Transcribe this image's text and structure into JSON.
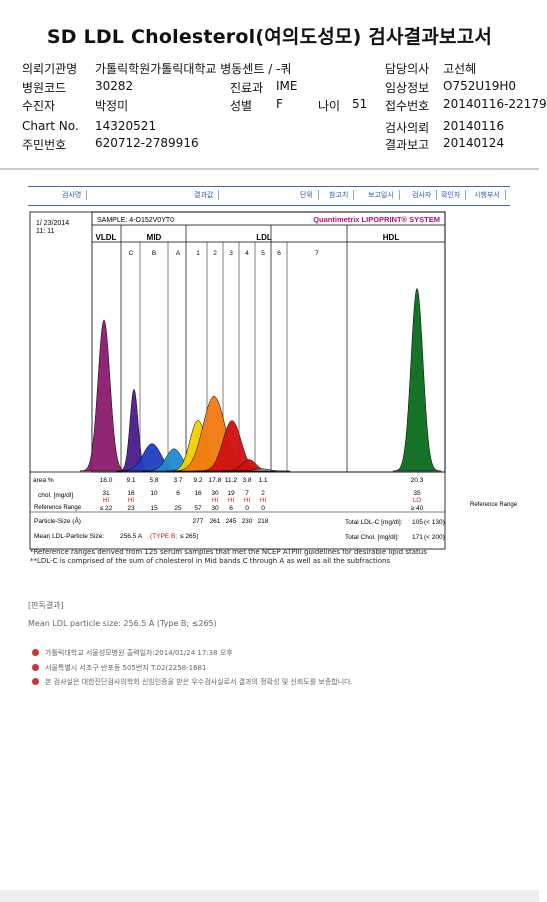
{
  "report": {
    "title": "SD LDL Cholesterol(여의도성모) 검사결과보고서"
  },
  "header": {
    "institution_label": "의뢰기관명",
    "institution": "가톨릭학원가톨릭대학교 병동센트 / -쿼",
    "code_label": "병원코드",
    "code": "30282",
    "dept_label": "진료과",
    "dept": "IME",
    "recipient_label": "수진자",
    "recipient": "박정미",
    "sex_label": "성별",
    "sex": "F",
    "age_label": "나이",
    "age": "51",
    "chart_label": "Chart No.",
    "chart": "14320521",
    "resident_label": "주민번호",
    "resident": "620712-2789916",
    "doctor_label": "담당의사",
    "doctor": "고선혜",
    "clinical_label": "임상정보",
    "clinical": "O752U19H0",
    "reception_label": "접수번호",
    "reception": "20140116-22179",
    "request_label": "검사의뢰",
    "request": "20140116",
    "report_label": "결과보고",
    "report_date": "20140124"
  },
  "tabs": [
    "검사명",
    "결과값",
    "단위",
    "참고치",
    "보고일시",
    "검사자",
    "확인자",
    "시행부서"
  ],
  "chart_data": {
    "type": "area",
    "date": "1/ 23/2014",
    "time": "11: 11",
    "sample": "SAMPLE:  4-O152V0YT0",
    "brand": "Quantimetrix LIPOPRINT® SYSTEM",
    "groups": [
      "VLDL",
      "MID",
      "LDL",
      "HDL"
    ],
    "bands": [
      "C",
      "B",
      "A",
      "1",
      "2",
      "3",
      "4",
      "5",
      "6",
      "7"
    ],
    "area_label": "area %",
    "area": [
      "18.0",
      "9.1",
      "5.8",
      "3.7",
      "9.2",
      "17.8",
      "11.2",
      "3.8",
      "1.1",
      "20.3"
    ],
    "chol_label": "chol. [mg/dl]",
    "chol": [
      "31",
      "16",
      "10",
      "6",
      "16",
      "30",
      "19",
      "7",
      "2",
      "35"
    ],
    "flags": [
      "HI",
      "HI",
      "HI",
      "HI",
      "HI",
      "HI",
      "LO"
    ],
    "ref_label": "Reference Range",
    "ref": [
      "≤ 22",
      "23",
      "15",
      "25",
      "57",
      "30",
      "6",
      "0",
      "0",
      "≥ 40"
    ],
    "particle_label": "Particle-Size (Å)",
    "particle": [
      "277",
      "261",
      "245",
      "230",
      "218"
    ],
    "mean_label": "Mean LDL-Particle Size:",
    "mean_value": "256.5 A",
    "mean_type": "(TYPE B;",
    "mean_ref": "≤ 265)",
    "total_ldl_label": "Total LDL-C [mg/dl]:",
    "total_ldl": "105",
    "total_ldl_ref": "(< 130)",
    "total_chol_label": "Total Chol. [mg/dl]:",
    "total_chol": "171",
    "total_chol_ref": "(< 200)"
  },
  "notes": {
    "n1": "*Reference ranges derived from 125 serum samples that met the NCEP ATPIII guidelines for desirable lipid status",
    "n2": "**LDL-C is comprised of the sum of cholesterol in Mid bands C through A as well as all the subfractions"
  },
  "result_title": "[판독결과]",
  "result_text": "Mean LDL particle size: 256.5 A (Type B; ≤265)",
  "footer": {
    "l1": "가톨릭대학교 서울성모병원        출력일자:2014/01/24 17:38 오후",
    "l2": "서울특별시 서초구 반포동 505번지 T.02(2258-1681",
    "l3": "본 검사실은 대한진단검사의학회 신임인증을 받은 우수검사실로서 결과의 정확성 및 신뢰도를 보증합니다."
  },
  "colors": {
    "vldl": "#8b1a6e",
    "mid_c": "#4a1a8a",
    "mid_b": "#1f3ec0",
    "mid_a": "#1f8ad0",
    "ldl1": "#f2d000",
    "ldl2": "#f07a10",
    "ldl3": "#d01010",
    "hdl": "#0a6a1a",
    "brand": "#b0107a",
    "flag": "#d01010"
  }
}
